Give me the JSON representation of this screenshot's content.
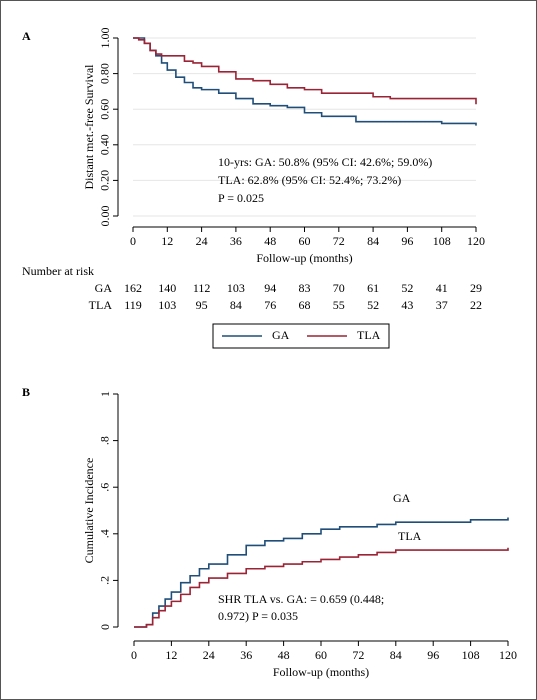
{
  "chart_data": [
    {
      "type": "line",
      "step": true,
      "panel_label": "A",
      "ylabel": "Distant met.-free Survival",
      "xlabel": "Follow-up (months)",
      "x": [
        0,
        2,
        4,
        6,
        8,
        10,
        12,
        15,
        18,
        21,
        24,
        30,
        36,
        42,
        48,
        54,
        60,
        66,
        72,
        78,
        84,
        90,
        96,
        102,
        108,
        114,
        120
      ],
      "series": [
        {
          "name": "GA",
          "color": "#1f4e79",
          "values": [
            1,
            1,
            0.97,
            0.93,
            0.9,
            0.86,
            0.82,
            0.78,
            0.75,
            0.72,
            0.71,
            0.69,
            0.66,
            0.63,
            0.62,
            0.61,
            0.58,
            0.56,
            0.56,
            0.53,
            0.53,
            0.53,
            0.53,
            0.53,
            0.52,
            0.52,
            0.508
          ]
        },
        {
          "name": "TLA",
          "color": "#9b2335",
          "values": [
            1,
            0.99,
            0.97,
            0.93,
            0.91,
            0.9,
            0.9,
            0.9,
            0.87,
            0.86,
            0.84,
            0.81,
            0.77,
            0.76,
            0.74,
            0.72,
            0.71,
            0.69,
            0.69,
            0.69,
            0.67,
            0.66,
            0.66,
            0.66,
            0.66,
            0.66,
            0.628
          ]
        }
      ],
      "xlim": [
        0,
        120
      ],
      "xticks": [
        0,
        12,
        24,
        36,
        48,
        60,
        72,
        84,
        96,
        108,
        120
      ],
      "ylim": [
        0,
        1
      ],
      "yticks": [
        {
          "value": 0,
          "label": "0.00"
        },
        {
          "value": 0.2,
          "label": "0.20"
        },
        {
          "value": 0.4,
          "label": "0.40"
        },
        {
          "value": 0.6,
          "label": "0.60"
        },
        {
          "value": 0.8,
          "label": "0.80"
        },
        {
          "value": 1,
          "label": "1.00"
        }
      ],
      "grid": true,
      "legend": "bottom",
      "annotations": [
        "10-yrs: GA: 50.8% (95% CI: 42.6%; 59.0%)",
        "TLA: 62.8% (95% CI: 52.4%; 73.2%)",
        "P = 0.025"
      ],
      "risk_table": {
        "title": "Number at risk",
        "rows": [
          {
            "name": "GA",
            "values": [
              162,
              140,
              112,
              103,
              94,
              83,
              70,
              61,
              52,
              41,
              29
            ]
          },
          {
            "name": "TLA",
            "values": [
              119,
              103,
              95,
              84,
              76,
              68,
              55,
              52,
              43,
              37,
              22
            ]
          }
        ]
      }
    },
    {
      "type": "line",
      "step": true,
      "panel_label": "B",
      "ylabel": "Cumulative Incidence",
      "xlabel": "Follow-up (months)",
      "x": [
        0,
        2,
        4,
        6,
        8,
        10,
        12,
        15,
        18,
        21,
        24,
        30,
        36,
        42,
        48,
        54,
        60,
        66,
        72,
        78,
        84,
        90,
        96,
        102,
        108,
        114,
        120
      ],
      "series": [
        {
          "name": "GA",
          "color": "#1f4e79",
          "label_color": "#000000",
          "values": [
            0,
            0,
            0.01,
            0.06,
            0.09,
            0.12,
            0.15,
            0.19,
            0.22,
            0.25,
            0.27,
            0.31,
            0.35,
            0.37,
            0.38,
            0.4,
            0.42,
            0.43,
            0.43,
            0.44,
            0.45,
            0.45,
            0.45,
            0.45,
            0.46,
            0.46,
            0.47
          ]
        },
        {
          "name": "TLA",
          "color": "#9b2335",
          "label_color": "#c0283c",
          "values": [
            0,
            0,
            0.01,
            0.04,
            0.07,
            0.09,
            0.11,
            0.14,
            0.17,
            0.19,
            0.21,
            0.23,
            0.25,
            0.26,
            0.27,
            0.28,
            0.29,
            0.3,
            0.31,
            0.32,
            0.33,
            0.33,
            0.33,
            0.33,
            0.33,
            0.33,
            0.34
          ]
        }
      ],
      "xlim": [
        0,
        120
      ],
      "xticks": [
        0,
        12,
        24,
        36,
        48,
        60,
        72,
        84,
        96,
        108,
        120
      ],
      "ylim": [
        0,
        1
      ],
      "yticks": [
        0,
        {
          "value": 0.2,
          "label": ".2"
        },
        {
          "value": 0.4,
          "label": ".4"
        },
        {
          "value": 0.6,
          "label": ".6"
        },
        {
          "value": 0.8,
          "label": ".8"
        },
        1
      ],
      "grid": false,
      "legend": "direct",
      "annotations": [
        "SHR TLA vs. GA:  =  0.659 (0.448;",
        "0.972) P = 0.035"
      ]
    }
  ]
}
